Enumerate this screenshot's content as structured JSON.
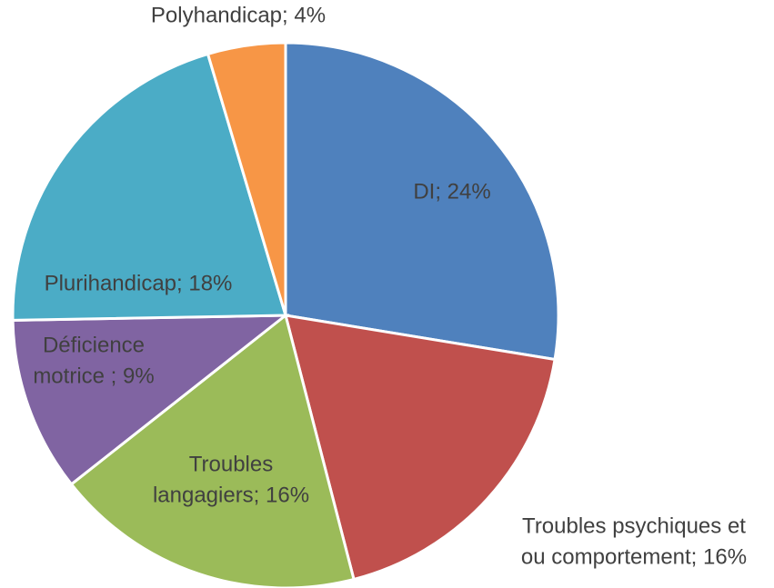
{
  "chart_data": {
    "type": "pie",
    "values": [
      24,
      16,
      16,
      9,
      18,
      4
    ],
    "value_labels": [
      [
        "DI; 24%"
      ],
      [
        "Troubles psychiques et",
        "ou comportement; 16%"
      ],
      [
        "Troubles",
        "langagiers; 16%"
      ],
      [
        "Déficience",
        "motrice ; 9%"
      ],
      [
        "Plurihandicap; 18%"
      ],
      [
        "Polyhandicap; 4%"
      ]
    ],
    "colors": [
      "#4f81bd",
      "#c0504d",
      "#9bbb59",
      "#8064a2",
      "#4bacc6",
      "#f79646"
    ]
  }
}
